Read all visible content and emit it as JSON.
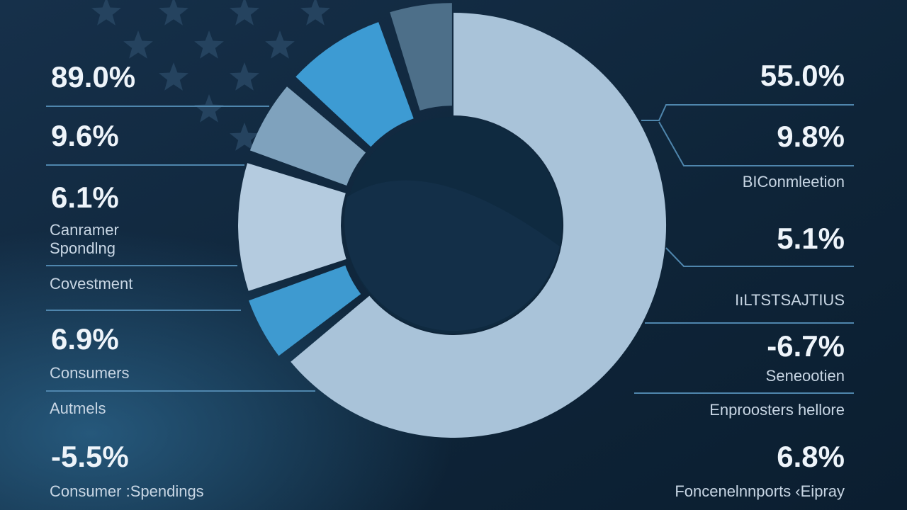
{
  "left_panel": {
    "items": [
      {
        "value": "89.0%"
      },
      {
        "value": "9.6%"
      },
      {
        "value": "6.1%",
        "label_lines": [
          "Canramer",
          "Spondlng"
        ]
      },
      {
        "label_lines": [
          "Covestment"
        ]
      },
      {
        "value": "6.9%",
        "label_lines": [
          "Consumers"
        ]
      },
      {
        "label_lines": [
          "Autmels"
        ]
      },
      {
        "value": "-5.5%",
        "label_lines": [
          "Consumer :Spendings"
        ]
      }
    ]
  },
  "right_panel": {
    "items": [
      {
        "value": "55.0%"
      },
      {
        "value": "9.8%",
        "label_lines": [
          "BIConmleetion"
        ]
      },
      {
        "value": "5.1%",
        "label_lines": [
          "IıLTSTSAJTIUS"
        ]
      },
      {
        "value": "-6.7%",
        "label_lines": [
          "Seneootien"
        ]
      },
      {
        "label_lines": [
          "Enproosters hellore"
        ]
      },
      {
        "value": "6.8%",
        "label_lines": [
          "Foncenelnnports ‹Eipray"
        ]
      }
    ]
  }
}
